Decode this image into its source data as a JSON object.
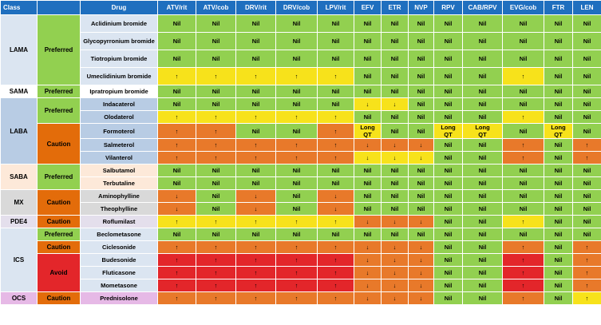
{
  "header": {
    "class": "Class",
    "drug": "Drug",
    "arvs": [
      "ATV/rit",
      "ATV/cob",
      "DRV/rit",
      "DRV/cob",
      "LPV/rit",
      "EFV",
      "ETR",
      "NVP",
      "RPV",
      "CAB/RPV",
      "EVG/cob",
      "FTR",
      "LEN"
    ]
  },
  "groups": [
    {
      "class": "LAMA",
      "color": "#dbe5f1",
      "levels": [
        {
          "label": "Preferred",
          "color": "#92d050",
          "rows": [
            {
              "drug": "Aclidinium bromide",
              "cells": [
                "Nil",
                "Nil",
                "Nil",
                "Nil",
                "Nil",
                "Nil",
                "Nil",
                "Nil",
                "Nil",
                "Nil",
                "Nil",
                "Nil",
                "Nil"
              ],
              "colors": [
                "#92d050",
                "#92d050",
                "#92d050",
                "#92d050",
                "#92d050",
                "#92d050",
                "#92d050",
                "#92d050",
                "#92d050",
                "#92d050",
                "#92d050",
                "#92d050",
                "#92d050"
              ]
            },
            {
              "drug": "Glycopyrronium bromide",
              "cells": [
                "Nil",
                "Nil",
                "Nil",
                "Nil",
                "Nil",
                "Nil",
                "Nil",
                "Nil",
                "Nil",
                "Nil",
                "Nil",
                "Nil",
                "Nil"
              ],
              "colors": [
                "#92d050",
                "#92d050",
                "#92d050",
                "#92d050",
                "#92d050",
                "#92d050",
                "#92d050",
                "#92d050",
                "#92d050",
                "#92d050",
                "#92d050",
                "#92d050",
                "#92d050"
              ]
            },
            {
              "drug": "Tiotropium bromide",
              "cells": [
                "Nil",
                "Nil",
                "Nil",
                "Nil",
                "Nil",
                "Nil",
                "Nil",
                "Nil",
                "Nil",
                "Nil",
                "Nil",
                "Nil",
                "Nil"
              ],
              "colors": [
                "#92d050",
                "#92d050",
                "#92d050",
                "#92d050",
                "#92d050",
                "#92d050",
                "#92d050",
                "#92d050",
                "#92d050",
                "#92d050",
                "#92d050",
                "#92d050",
                "#92d050"
              ]
            },
            {
              "drug": "Umeclidinium bromide",
              "cells": [
                "↑",
                "↑",
                "↑",
                "↑",
                "↑",
                "Nil",
                "Nil",
                "Nil",
                "Nil",
                "Nil",
                "↑",
                "Nil",
                "Nil"
              ],
              "colors": [
                "#f7e21b",
                "#f7e21b",
                "#f7e21b",
                "#f7e21b",
                "#f7e21b",
                "#92d050",
                "#92d050",
                "#92d050",
                "#92d050",
                "#92d050",
                "#f7e21b",
                "#92d050",
                "#92d050"
              ]
            }
          ]
        }
      ]
    },
    {
      "class": "SAMA",
      "color": "#ffffff",
      "levels": [
        {
          "label": "Preferred",
          "color": "#92d050",
          "rows": [
            {
              "drug": "Ipratropium bromide",
              "cells": [
                "Nil",
                "Nil",
                "Nil",
                "Nil",
                "Nil",
                "Nil",
                "Nil",
                "Nil",
                "Nil",
                "Nil",
                "Nil",
                "Nil",
                "Nil"
              ],
              "colors": [
                "#92d050",
                "#92d050",
                "#92d050",
                "#92d050",
                "#92d050",
                "#92d050",
                "#92d050",
                "#92d050",
                "#92d050",
                "#92d050",
                "#92d050",
                "#92d050",
                "#92d050"
              ]
            }
          ]
        }
      ]
    },
    {
      "class": "LABA",
      "color": "#b8cce4",
      "levels": [
        {
          "label": "Preferred",
          "color": "#92d050",
          "rows": [
            {
              "drug": "Indacaterol",
              "cells": [
                "Nil",
                "Nil",
                "Nil",
                "Nil",
                "Nil",
                "↓",
                "↓",
                "Nil",
                "Nil",
                "Nil",
                "Nil",
                "Nil",
                "Nil"
              ],
              "colors": [
                "#92d050",
                "#92d050",
                "#92d050",
                "#92d050",
                "#92d050",
                "#f7e21b",
                "#f7e21b",
                "#92d050",
                "#92d050",
                "#92d050",
                "#92d050",
                "#92d050",
                "#92d050"
              ]
            },
            {
              "drug": "Olodaterol",
              "cells": [
                "↑",
                "↑",
                "↑",
                "↑",
                "↑",
                "Nil",
                "Nil",
                "Nil",
                "Nil",
                "Nil",
                "↑",
                "Nil",
                "Nil"
              ],
              "colors": [
                "#f7e21b",
                "#f7e21b",
                "#f7e21b",
                "#f7e21b",
                "#f7e21b",
                "#92d050",
                "#92d050",
                "#92d050",
                "#92d050",
                "#92d050",
                "#f7e21b",
                "#92d050",
                "#92d050"
              ]
            }
          ]
        },
        {
          "label": "Caution",
          "color": "#e36c0a",
          "rows": [
            {
              "drug": "Formoterol",
              "cells": [
                "↑",
                "↑",
                "Nil",
                "Nil",
                "↑",
                "Long QT",
                "Nil",
                "Nil",
                "Long QT",
                "Long QT",
                "Nil",
                "Long QT",
                "Nil"
              ],
              "colors": [
                "#e8792a",
                "#e8792a",
                "#92d050",
                "#92d050",
                "#e8792a",
                "#f7e21b",
                "#92d050",
                "#92d050",
                "#f7e21b",
                "#f7e21b",
                "#92d050",
                "#f7e21b",
                "#92d050"
              ]
            },
            {
              "drug": "Salmeterol",
              "cells": [
                "↑",
                "↑",
                "↑",
                "↑",
                "↑",
                "↓",
                "↓",
                "↓",
                "Nil",
                "Nil",
                "↑",
                "Nil",
                "↑"
              ],
              "colors": [
                "#e8792a",
                "#e8792a",
                "#e8792a",
                "#e8792a",
                "#e8792a",
                "#e8792a",
                "#e8792a",
                "#e8792a",
                "#92d050",
                "#92d050",
                "#e8792a",
                "#92d050",
                "#e8792a"
              ]
            },
            {
              "drug": "Vilanterol",
              "cells": [
                "↑",
                "↑",
                "↑",
                "↑",
                "↑",
                "↓",
                "↓",
                "↓",
                "Nil",
                "Nil",
                "↑",
                "Nil",
                "↑"
              ],
              "colors": [
                "#e8792a",
                "#e8792a",
                "#e8792a",
                "#e8792a",
                "#e8792a",
                "#f7e21b",
                "#f7e21b",
                "#f7e21b",
                "#92d050",
                "#92d050",
                "#e8792a",
                "#92d050",
                "#e8792a"
              ]
            }
          ]
        }
      ]
    },
    {
      "class": "SABA",
      "color": "#fde9d9",
      "levels": [
        {
          "label": "Preferred",
          "color": "#92d050",
          "rows": [
            {
              "drug": "Salbutamol",
              "cells": [
                "Nil",
                "Nil",
                "Nil",
                "Nil",
                "Nil",
                "Nil",
                "Nil",
                "Nil",
                "Nil",
                "Nil",
                "Nil",
                "Nil",
                "Nil"
              ],
              "colors": [
                "#92d050",
                "#92d050",
                "#92d050",
                "#92d050",
                "#92d050",
                "#92d050",
                "#92d050",
                "#92d050",
                "#92d050",
                "#92d050",
                "#92d050",
                "#92d050",
                "#92d050"
              ]
            },
            {
              "drug": "Terbutaline",
              "cells": [
                "Nil",
                "Nil",
                "Nil",
                "Nil",
                "Nil",
                "Nil",
                "Nil",
                "Nil",
                "Nil",
                "Nil",
                "Nil",
                "Nil",
                "Nil"
              ],
              "colors": [
                "#92d050",
                "#92d050",
                "#92d050",
                "#92d050",
                "#92d050",
                "#92d050",
                "#92d050",
                "#92d050",
                "#92d050",
                "#92d050",
                "#92d050",
                "#92d050",
                "#92d050"
              ]
            }
          ]
        }
      ]
    },
    {
      "class": "MX",
      "color": "#d9d9d9",
      "levels": [
        {
          "label": "Caution",
          "color": "#e36c0a",
          "rows": [
            {
              "drug": "Aminophylline",
              "cells": [
                "↓",
                "Nil",
                "↓",
                "Nil",
                "↓",
                "Nil",
                "Nil",
                "Nil",
                "Nil",
                "Nil",
                "Nil",
                "Nil",
                "Nil"
              ],
              "colors": [
                "#e8792a",
                "#92d050",
                "#e8792a",
                "#92d050",
                "#e8792a",
                "#92d050",
                "#92d050",
                "#92d050",
                "#92d050",
                "#92d050",
                "#92d050",
                "#92d050",
                "#92d050"
              ]
            },
            {
              "drug": "Theophylline",
              "cells": [
                "↓",
                "Nil",
                "↓",
                "Nil",
                "↓",
                "Nil",
                "Nil",
                "Nil",
                "Nil",
                "Nil",
                "Nil",
                "Nil",
                "Nil"
              ],
              "colors": [
                "#e8792a",
                "#92d050",
                "#e8792a",
                "#92d050",
                "#e8792a",
                "#92d050",
                "#92d050",
                "#92d050",
                "#92d050",
                "#92d050",
                "#92d050",
                "#92d050",
                "#92d050"
              ]
            }
          ]
        }
      ]
    },
    {
      "class": "PDE4",
      "color": "#e4dfec",
      "levels": [
        {
          "label": "Caution",
          "color": "#e36c0a",
          "rows": [
            {
              "drug": "Roflumilast",
              "cells": [
                "↑",
                "↑",
                "↑",
                "↑",
                "↑",
                "↓",
                "↓",
                "↓",
                "Nil",
                "Nil",
                "↑",
                "Nil",
                "Nil"
              ],
              "colors": [
                "#f7e21b",
                "#f7e21b",
                "#f7e21b",
                "#f7e21b",
                "#f7e21b",
                "#e8792a",
                "#e8792a",
                "#e8792a",
                "#92d050",
                "#92d050",
                "#f7e21b",
                "#92d050",
                "#92d050"
              ]
            }
          ]
        }
      ]
    },
    {
      "class": "ICS",
      "color": "#dbe5f1",
      "levels": [
        {
          "label": "Preferred",
          "color": "#92d050",
          "rows": [
            {
              "drug": "Beclometasone",
              "cells": [
                "Nil",
                "Nil",
                "Nil",
                "Nil",
                "Nil",
                "Nil",
                "Nil",
                "Nil",
                "Nil",
                "Nil",
                "Nil",
                "Nil",
                "Nil"
              ],
              "colors": [
                "#92d050",
                "#92d050",
                "#92d050",
                "#92d050",
                "#92d050",
                "#92d050",
                "#92d050",
                "#92d050",
                "#92d050",
                "#92d050",
                "#92d050",
                "#92d050",
                "#92d050"
              ]
            }
          ]
        },
        {
          "label": "Caution",
          "color": "#e36c0a",
          "rows": [
            {
              "drug": "Ciclesonide",
              "cells": [
                "↑",
                "↑",
                "↑",
                "↑",
                "↑",
                "↓",
                "↓",
                "↓",
                "Nil",
                "Nil",
                "↑",
                "Nil",
                "↑"
              ],
              "colors": [
                "#e8792a",
                "#e8792a",
                "#e8792a",
                "#e8792a",
                "#e8792a",
                "#e8792a",
                "#e8792a",
                "#e8792a",
                "#92d050",
                "#92d050",
                "#e8792a",
                "#92d050",
                "#e8792a"
              ]
            }
          ]
        },
        {
          "label": "Avoid",
          "color": "#e3262a",
          "rows": [
            {
              "drug": "Budesonide",
              "cells": [
                "↑",
                "↑",
                "↑",
                "↑",
                "↑",
                "↓",
                "↓",
                "↓",
                "Nil",
                "Nil",
                "↑",
                "Nil",
                "↑"
              ],
              "colors": [
                "#e3262a",
                "#e3262a",
                "#e3262a",
                "#e3262a",
                "#e3262a",
                "#e8792a",
                "#e8792a",
                "#e8792a",
                "#92d050",
                "#92d050",
                "#e3262a",
                "#92d050",
                "#e8792a"
              ]
            },
            {
              "drug": "Fluticasone",
              "cells": [
                "↑",
                "↑",
                "↑",
                "↑",
                "↑",
                "↓",
                "↓",
                "↓",
                "Nil",
                "Nil",
                "↑",
                "Nil",
                "↑"
              ],
              "colors": [
                "#e3262a",
                "#e3262a",
                "#e3262a",
                "#e3262a",
                "#e3262a",
                "#e8792a",
                "#e8792a",
                "#e8792a",
                "#92d050",
                "#92d050",
                "#e3262a",
                "#92d050",
                "#e8792a"
              ]
            },
            {
              "drug": "Mometasone",
              "cells": [
                "↑",
                "↑",
                "↑",
                "↑",
                "↑",
                "↓",
                "↓",
                "↓",
                "Nil",
                "Nil",
                "↑",
                "Nil",
                "↑"
              ],
              "colors": [
                "#e3262a",
                "#e3262a",
                "#e3262a",
                "#e3262a",
                "#e3262a",
                "#e8792a",
                "#e8792a",
                "#e8792a",
                "#92d050",
                "#92d050",
                "#e3262a",
                "#92d050",
                "#e8792a"
              ]
            }
          ]
        }
      ]
    },
    {
      "class": "OCS",
      "color": "#e6b9e6",
      "levels": [
        {
          "label": "Caution",
          "color": "#e36c0a",
          "rows": [
            {
              "drug": "Prednisolone",
              "cells": [
                "↑",
                "↑",
                "↑",
                "↑",
                "↑",
                "↓",
                "↓",
                "↓",
                "Nil",
                "Nil",
                "↑",
                "Nil",
                "↑"
              ],
              "colors": [
                "#e8792a",
                "#e8792a",
                "#e8792a",
                "#e8792a",
                "#e8792a",
                "#e8792a",
                "#e8792a",
                "#e8792a",
                "#92d050",
                "#92d050",
                "#e8792a",
                "#92d050",
                "#f7e21b"
              ]
            }
          ]
        }
      ]
    }
  ]
}
